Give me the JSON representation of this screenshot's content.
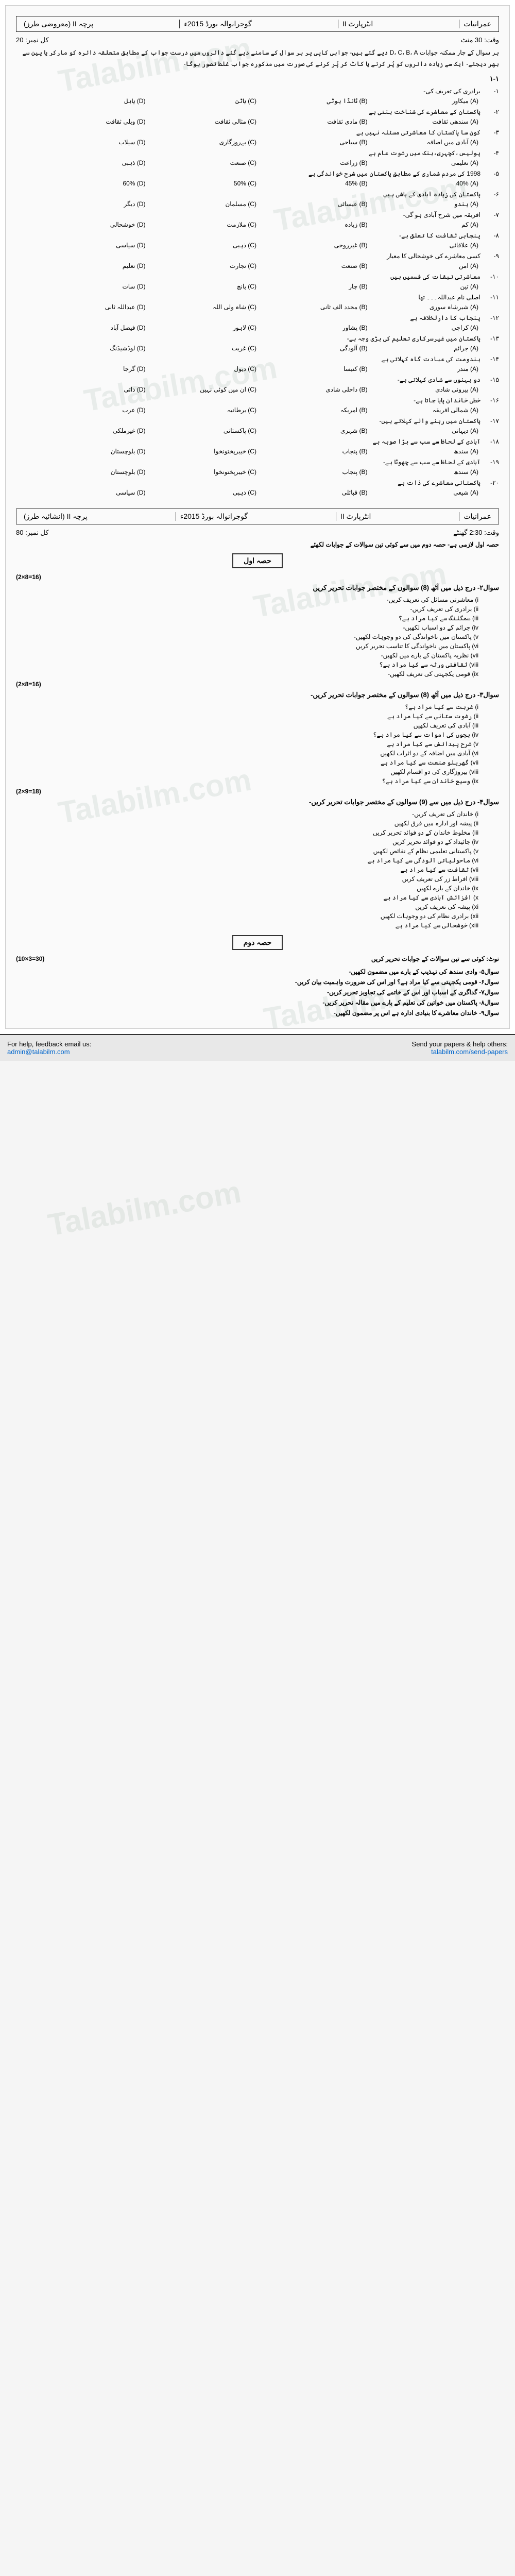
{
  "header": {
    "prefix": "For help, feedback email us:",
    "email": "admin@talabilm.com",
    "suffix": "Send your papers & help others:",
    "link": "talabilm.com/send-papers"
  },
  "watermark": "Talabilm.com",
  "paper1": {
    "row": {
      "subject": "عمرانیات",
      "class": "انٹرپارٹ II",
      "board": "گوجرانوالہ بورڈ 2015ء",
      "paper": "پرچہ II (معروضی طرز)"
    },
    "time": "وقت: 30 منٹ",
    "marks": "کل نمبر: 20",
    "instr": "ہر سوال کے چار ممکنہ جوابات D، C، B، A دیے گئے ہیں- جوابی کاپی پر ہر سوال کے سامنے دیے گئے دائروں میں درست جواب کے مطابق متعلقہ دائرہ کو مارکر یا پین سے بھر دیجئے- ایک سے زیادہ دائروں کو پُر کرنے یا کاٹ کر پُر کرنے کی صورت میں مذکورہ جواب غلط تصور ہوگا-",
    "q1": "۱-۱",
    "mcq": [
      {
        "n": "۱",
        "s": "برادری کی تعریف کی-",
        "o": [
          "(A) میکاور",
          "(B) ٹانڈا ہوٹی",
          "(C) ہاٹن",
          "(D) ہابل"
        ]
      },
      {
        "n": "۲",
        "s": "پاکستان کے معاشرے کی شناخت بنتی ہے",
        "o": [
          "(A) سندھی ثقافت",
          "(B) مادی ثقافت",
          "(C) مثالی ثقافت",
          "(D) ویلی ثقافت"
        ]
      },
      {
        "n": "۳",
        "s": "کون سا پاکستان کا معاشرتی مسئلہ نہیں ہے",
        "o": [
          "(A) آبادی میں اضافہ",
          "(B) سیاحی",
          "(C) بےروزگاری",
          "(D) سیلاب"
        ]
      },
      {
        "n": "۴",
        "s": "پولیس،کچہری،بنک میں رشوت عام ہے",
        "o": [
          "(A) تعلیمی",
          "(B) زراعت",
          "(C) صنعت",
          "(D) ذہبی"
        ]
      },
      {
        "n": "۵",
        "s": "1998 کی مردم شماری کے مطابق پاکستان میں شرح خواندگی ہے",
        "o": [
          "(A) 40%",
          "(B) 45%",
          "(C) 50%",
          "(D) 60%"
        ]
      },
      {
        "n": "۶",
        "s": "پاکستان کی زیادہ آبادی کے باشی ہیں",
        "o": [
          "(A) ہندو",
          "(B) عیسائی",
          "(C) مسلمان",
          "(D) دیگر"
        ]
      },
      {
        "n": "۷",
        "s": "افریقہ میں شرح آبادی ہو گی-",
        "o": [
          "(A) کم",
          "(B) زیادہ",
          "(C) ملازمت",
          "(D) خوشحالی"
        ]
      },
      {
        "n": "۸",
        "s": "پنجابی ثقافت کا تعلق ہے-",
        "o": [
          "(A) علاقائی",
          "(B) غیرروحی",
          "(C) ذہبی",
          "(D) سیاسی"
        ]
      },
      {
        "n": "۹",
        "s": "کسی معاشرے کی خوشحالی کا معیار",
        "o": [
          "(A) امن",
          "(B) صنعت",
          "(C) تجارت",
          "(D) تعلیم"
        ]
      },
      {
        "n": "۱۰",
        "s": "معاشرتی تبقات کی قسمیں ہیں",
        "o": [
          "(A) تین",
          "(B) چار",
          "(C) پانچ",
          "(D) سات"
        ]
      },
      {
        "n": "۱۱",
        "s": "اصلی نام عبداللہ۔۔۔ تھا",
        "o": [
          "(A) شیرشاہ سوری",
          "(B) مجدد الف ثانی",
          "(C) شاہ ولی اللہ",
          "(D) عبداللہ ثانی"
        ]
      },
      {
        "n": "۱۲",
        "s": "پنجاب کا دارلخلافہ ہے",
        "o": [
          "(A) کراچی",
          "(B) پشاور",
          "(C) لاہور",
          "(D) فیصل آباد"
        ]
      },
      {
        "n": "۱۳",
        "s": "پاکستان میں غیرسرکاری تعلیم کی بڑی وجہ ہے-",
        "o": [
          "(A) جرائم",
          "(B) آلودگی",
          "(C) غربت",
          "(D) لوڈشیڈنگ"
        ]
      },
      {
        "n": "۱۴",
        "s": "ہندومت کی عبادت گاہ کہلاتی ہے",
        "o": [
          "(A) مندر",
          "(B) کنیسا",
          "(C) دیول",
          "(D) گرجا"
        ]
      },
      {
        "n": "۱۵",
        "s": "دو بہنوں سے شادی کہلاتی ہے-",
        "o": [
          "(A) بیرونی شادی",
          "(B) داخلی شادی",
          "(C) ان میں کوئی نہیں",
          "(D) ذاتی"
        ]
      },
      {
        "n": "۱۶",
        "s": "خطی خاندان پایا جاتا ہے-",
        "o": [
          "(A) شمالی افریقہ",
          "(B) امریکہ",
          "(C) برطانیہ",
          "(D) عرب"
        ]
      },
      {
        "n": "۱۷",
        "s": "پاکستان میں رہنے والے کہلاتے ہیں-",
        "o": [
          "(A) دیہاتی",
          "(B) شہری",
          "(C) پاکستانی",
          "(D) غیرملکی"
        ]
      },
      {
        "n": "۱۸",
        "s": "آبادی کے لحاظ سے سب سے بڑا صوبہ ہے",
        "o": [
          "(A) سندھ",
          "(B) پنجاب",
          "(C) خیبرپختونخوا",
          "(D) بلوچستان"
        ]
      },
      {
        "n": "۱۹",
        "s": "آبادی کے لحاظ سے سب سے چھوٹا ہے-",
        "o": [
          "(A) سندھ",
          "(B) پنجاب",
          "(C) خیبرپختونخوا",
          "(D) بلوچستان"
        ]
      },
      {
        "n": "۲۰",
        "s": "پاکستانی معاشرے کی ذات ہے",
        "o": [
          "(A) شیعی",
          "(B) قبائلی",
          "(C) ذہبی",
          "(D) سیاسی"
        ]
      }
    ]
  },
  "paper2": {
    "row": {
      "subject": "عمرانیات",
      "class": "انٹرپارٹ II",
      "board": "گوجرانوالہ بورڈ 2015ء",
      "paper": "پرچہ II (انشائیہ طرز)"
    },
    "time": "وقت: 2:30 گھنٹے",
    "marks": "کل نمبر: 80",
    "note": "حصہ اول لازمی ہے- حصہ دوم میں سے کوئی تین سوالات کے جوابات لکھئے",
    "sec1": "حصہ اول",
    "q2h": "سوال۲- درج ذیل میں آٹھ (8) سوالوں کے مختصر جوابات تحریر کریں",
    "q2m": "(2×8=16)",
    "q2": [
      "i) معاشرتی مسائل کی تعریف کریں-",
      "ii) برادری کی تعریف کریں-",
      "iii) سمگلنگ سے کیا مراد ہے؟",
      "iv) جرائم کے دو اسباب لکھیں-",
      "v) پاکستان میں ناخواندگی کی دو وجوہات لکھیں-",
      "vi) پاکستان میں ناخواندگی کا تناسب تحریر کریں",
      "vii) نظریہ پاکستان کے بارے میں لکھیں-",
      "viii) ثقافتی ورثہ سے کیا مراد ہے؟",
      "ix) قومی یکجہتی کی تعریف لکھیں-"
    ],
    "q3h": "سوال۳- درج ذیل میں آٹھ (8) سوالوں کے مختصر جوابات تحریر کریں-",
    "q3m": "(2×8=16)",
    "q3": [
      "i) غربت سے کیا مراد ہے؟",
      "ii) رشوت ستانی سے کیا مراد ہے",
      "iii) آبادی کی تعریف لکھیں",
      "iv) بچوں کی اموات سے کیا مراد ہے؟",
      "v) شرح پیدائش سے کیا مراد ہے",
      "vi) آبادی میں اضافہ کے دو اثرات لکھیں",
      "vii) گھریلو صنعت سے کیا مراد ہے",
      "viii) بیروزگاری کی دو اقسام لکھیں",
      "ix) وسیع خاندان سے کیا مراد ہے؟"
    ],
    "q4h": "سوال۴- درج ذیل میں سے (9) سوالوں کے مختصر جوابات تحریر کریں-",
    "q4m": "(2×9=18)",
    "q4": [
      "i) خاندان کی تعریف کریں-",
      "ii) پیشہ اور ادارہ میں فرق لکھیں",
      "iii) مخلوط خاندان کے دو فوائد تحریر کریں",
      "iv) جائیداد کے دو فوائد تحریر کریں",
      "v) پاکستانی تعلیمی نظام کے نقائص لکھیں",
      "vi) ماحولیاتی آلودگی سے کیا مراد ہے",
      "vii) ثقافت سے کیا مراد ہے",
      "viii) افراط زر کی تعریف کریں",
      "ix) خاندان کے بارے لکھیں",
      "x) افزائش آبادی سے کیا مراد ہے",
      "xi) پیشہ کی تعریف کریں",
      "xii) برادری نظام کی دو وجوہات لکھیں",
      "xiii) خوشحالی سے کیا مراد ہے"
    ],
    "sec2": "حصہ دوم",
    "note2": "نوٹ: کوئی سے تین سوالات کے جوابات تحریر کریں",
    "longm": "(10×3=30)",
    "long": [
      "سوال۵- وادی سندھ کی تہذیب کے بارے میں مضمون لکھیں-",
      "سوال۶- قومی یکجہتی سے کیا مراد ہے؟ اور اس کی ضرورت واہمیت بیان کریں-",
      "سوال۷- گداگری کے اسباب اور اس کے خاتمے کی تجاویز تحریر کریں-",
      "سوال۸- پاکستان میں خواتین کی تعلیم کے بارے میں مقالہ تحریر کریں-",
      "سوال۹- خاندان معاشرے کا بنیادی ادارہ ہے اس پر مضمون لکھیں-"
    ]
  },
  "footer": {
    "prefix": "For help, feedback email us:",
    "email": "admin@talabilm.com",
    "suffix": "Send your papers & help others:",
    "link": "talabilm.com/send-papers"
  }
}
